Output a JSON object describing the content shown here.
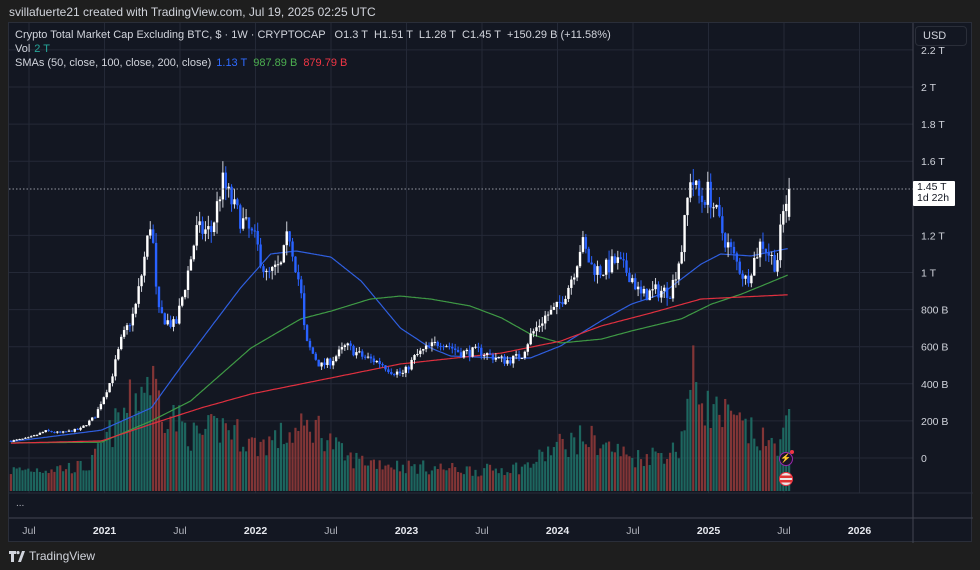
{
  "credit": "svillafuerte21 created with TradingView.com, Jul 19, 2025 02:25 UTC",
  "legend": {
    "title": "Crypto Total Market Cap Excluding BTC, $ · 1W · CRYPTOCAP",
    "open": "O1.3 T",
    "high": "H1.51 T",
    "low": "L1.28 T",
    "close": "C1.45 T",
    "change": "+150.29 B (+11.58%)",
    "vol_label": "Vol",
    "vol_value": "2 T",
    "sma_label": "SMAs (50, close, 100, close, 200, close)",
    "sma50_value": "1.13 T",
    "sma100_value": "987.89 B",
    "sma200_value": "879.79 B"
  },
  "currency_button": "USD",
  "price_label": {
    "value": "1.45 T",
    "countdown": "1d 22h"
  },
  "more_dots": "...",
  "brand": "TradingView",
  "colors": {
    "up": "#ffffff",
    "down": "#2962ff",
    "vol_up": "#1f6f66",
    "vol_down": "#8f3838",
    "sma50": "#2f5fe0",
    "sma100": "#3f9a45",
    "sma200": "#e0303f",
    "grid": "#242937",
    "bg": "#131722"
  },
  "chart_data": {
    "type": "candlestick",
    "title": "Crypto Total Market Cap Excluding BTC, $ · 1W · CRYPTOCAP",
    "units": "billions USD",
    "x_units": "decimal year",
    "xlim": [
      2020.37,
      2026.37
    ],
    "ylim": [
      -180,
      2350
    ],
    "grid": true,
    "y_ticks": [
      {
        "v": 2200,
        "label": "2.2 T"
      },
      {
        "v": 2000,
        "label": "2 T"
      },
      {
        "v": 1800,
        "label": "1.8 T"
      },
      {
        "v": 1600,
        "label": "1.6 T"
      },
      {
        "v": 1200,
        "label": "1.2 T"
      },
      {
        "v": 1000,
        "label": "1 T"
      },
      {
        "v": 800,
        "label": "800 B"
      },
      {
        "v": 600,
        "label": "600 B"
      },
      {
        "v": 400,
        "label": "400 B"
      },
      {
        "v": 200,
        "label": "200 B"
      },
      {
        "v": 0,
        "label": "0"
      }
    ],
    "x_ticks": [
      {
        "t": 2020.5,
        "label": "Jul",
        "bold": false
      },
      {
        "t": 2021.0,
        "label": "2021",
        "bold": true
      },
      {
        "t": 2021.5,
        "label": "Jul",
        "bold": false
      },
      {
        "t": 2022.0,
        "label": "2022",
        "bold": true
      },
      {
        "t": 2022.5,
        "label": "Jul",
        "bold": false
      },
      {
        "t": 2023.0,
        "label": "2023",
        "bold": true
      },
      {
        "t": 2023.5,
        "label": "Jul",
        "bold": false
      },
      {
        "t": 2024.0,
        "label": "2024",
        "bold": true
      },
      {
        "t": 2024.5,
        "label": "Jul",
        "bold": false
      },
      {
        "t": 2025.0,
        "label": "2025",
        "bold": true
      },
      {
        "t": 2025.5,
        "label": "Jul",
        "bold": false
      },
      {
        "t": 2026.0,
        "label": "2026",
        "bold": true
      }
    ],
    "last_bar": {
      "open": 1300,
      "high": 1510,
      "low": 1280,
      "close": 1450,
      "change": 150.29,
      "change_pct": 11.58,
      "volume_T": 2
    },
    "close_keypoints": [
      [
        2020.38,
        92
      ],
      [
        2020.5,
        108
      ],
      [
        2020.61,
        145
      ],
      [
        2020.71,
        135
      ],
      [
        2020.84,
        156
      ],
      [
        2020.94,
        226
      ],
      [
        2020.98,
        307
      ],
      [
        2021.04,
        415
      ],
      [
        2021.11,
        630
      ],
      [
        2021.14,
        685
      ],
      [
        2021.2,
        790
      ],
      [
        2021.25,
        1008
      ],
      [
        2021.31,
        1300
      ],
      [
        2021.35,
        790
      ],
      [
        2021.41,
        740
      ],
      [
        2021.47,
        710
      ],
      [
        2021.54,
        955
      ],
      [
        2021.61,
        1225
      ],
      [
        2021.71,
        1225
      ],
      [
        2021.78,
        1490
      ],
      [
        2021.87,
        1330
      ],
      [
        2022.0,
        1170
      ],
      [
        2022.07,
        980
      ],
      [
        2022.17,
        1035
      ],
      [
        2022.22,
        1225
      ],
      [
        2022.3,
        900
      ],
      [
        2022.33,
        630
      ],
      [
        2022.43,
        495
      ],
      [
        2022.5,
        523
      ],
      [
        2022.6,
        604
      ],
      [
        2022.7,
        550
      ],
      [
        2022.83,
        512
      ],
      [
        2022.9,
        469
      ],
      [
        2022.98,
        453
      ],
      [
        2023.06,
        550
      ],
      [
        2023.13,
        588
      ],
      [
        2023.23,
        630
      ],
      [
        2023.36,
        566
      ],
      [
        2023.48,
        577
      ],
      [
        2023.56,
        550
      ],
      [
        2023.66,
        523
      ],
      [
        2023.76,
        550
      ],
      [
        2023.82,
        658
      ],
      [
        2023.92,
        765
      ],
      [
        2023.99,
        803
      ],
      [
        2024.06,
        900
      ],
      [
        2024.12,
        1035
      ],
      [
        2024.16,
        1170
      ],
      [
        2024.22,
        1035
      ],
      [
        2024.29,
        1008
      ],
      [
        2024.39,
        1062
      ],
      [
        2024.49,
        980
      ],
      [
        2024.55,
        873
      ],
      [
        2024.65,
        900
      ],
      [
        2024.75,
        900
      ],
      [
        2024.82,
        1116
      ],
      [
        2024.88,
        1520
      ],
      [
        2024.95,
        1385
      ],
      [
        2025.0,
        1440
      ],
      [
        2025.1,
        1197
      ],
      [
        2025.18,
        1062
      ],
      [
        2025.25,
        955
      ],
      [
        2025.35,
        1170
      ],
      [
        2025.45,
        1035
      ],
      [
        2025.49,
        1300
      ],
      [
        2025.53,
        1450
      ]
    ],
    "volume_keypoints_T": [
      [
        2020.38,
        0.5
      ],
      [
        2020.9,
        0.6
      ],
      [
        2021.0,
        1.2
      ],
      [
        2021.15,
        2.0
      ],
      [
        2021.3,
        2.8
      ],
      [
        2021.4,
        2.0
      ],
      [
        2021.6,
        1.3
      ],
      [
        2021.8,
        1.6
      ],
      [
        2022.0,
        1.1
      ],
      [
        2022.4,
        1.6
      ],
      [
        2022.6,
        0.8
      ],
      [
        2023.0,
        0.6
      ],
      [
        2023.5,
        0.5
      ],
      [
        2023.8,
        0.6
      ],
      [
        2024.0,
        1.1
      ],
      [
        2024.2,
        1.3
      ],
      [
        2024.5,
        0.8
      ],
      [
        2024.8,
        1.0
      ],
      [
        2024.9,
        2.8
      ],
      [
        2025.0,
        2.0
      ],
      [
        2025.2,
        1.6
      ],
      [
        2025.4,
        1.1
      ],
      [
        2025.5,
        1.3
      ],
      [
        2025.53,
        2.0
      ]
    ],
    "series": [
      {
        "name": "SMA 50",
        "color_key": "sma50",
        "points": [
          [
            2020.38,
            88
          ],
          [
            2020.98,
            150
          ],
          [
            2021.31,
            270
          ],
          [
            2021.51,
            496
          ],
          [
            2021.9,
            916
          ],
          [
            2022.1,
            1100
          ],
          [
            2022.27,
            1116
          ],
          [
            2022.5,
            1083
          ],
          [
            2022.7,
            954
          ],
          [
            2022.96,
            700
          ],
          [
            2023.16,
            593
          ],
          [
            2023.29,
            550
          ],
          [
            2023.63,
            539
          ],
          [
            2023.82,
            539
          ],
          [
            2024.02,
            604
          ],
          [
            2024.29,
            740
          ],
          [
            2024.49,
            830
          ],
          [
            2024.69,
            884
          ],
          [
            2024.95,
            1045
          ],
          [
            2025.08,
            1100
          ],
          [
            2025.28,
            1089
          ],
          [
            2025.53,
            1130
          ]
        ]
      },
      {
        "name": "SMA 100",
        "color_key": "sma100",
        "points": [
          [
            2020.38,
            82
          ],
          [
            2020.98,
            85
          ],
          [
            2021.31,
            200
          ],
          [
            2021.57,
            307
          ],
          [
            2021.97,
            593
          ],
          [
            2022.3,
            750
          ],
          [
            2022.5,
            792
          ],
          [
            2022.76,
            857
          ],
          [
            2022.96,
            873
          ],
          [
            2023.16,
            857
          ],
          [
            2023.42,
            820
          ],
          [
            2023.63,
            755
          ],
          [
            2023.82,
            668
          ],
          [
            2024.02,
            620
          ],
          [
            2024.29,
            641
          ],
          [
            2024.49,
            685
          ],
          [
            2024.82,
            750
          ],
          [
            2025.02,
            830
          ],
          [
            2025.22,
            884
          ],
          [
            2025.53,
            988
          ]
        ]
      },
      {
        "name": "SMA 200",
        "color_key": "sma200",
        "points": [
          [
            2020.38,
            80
          ],
          [
            2020.98,
            92
          ],
          [
            2021.31,
            183
          ],
          [
            2021.64,
            270
          ],
          [
            2021.97,
            345
          ],
          [
            2022.3,
            399
          ],
          [
            2022.96,
            507
          ],
          [
            2023.63,
            566
          ],
          [
            2024.02,
            630
          ],
          [
            2024.29,
            712
          ],
          [
            2024.62,
            782
          ],
          [
            2024.95,
            857
          ],
          [
            2025.22,
            868
          ],
          [
            2025.53,
            880
          ]
        ]
      }
    ]
  }
}
